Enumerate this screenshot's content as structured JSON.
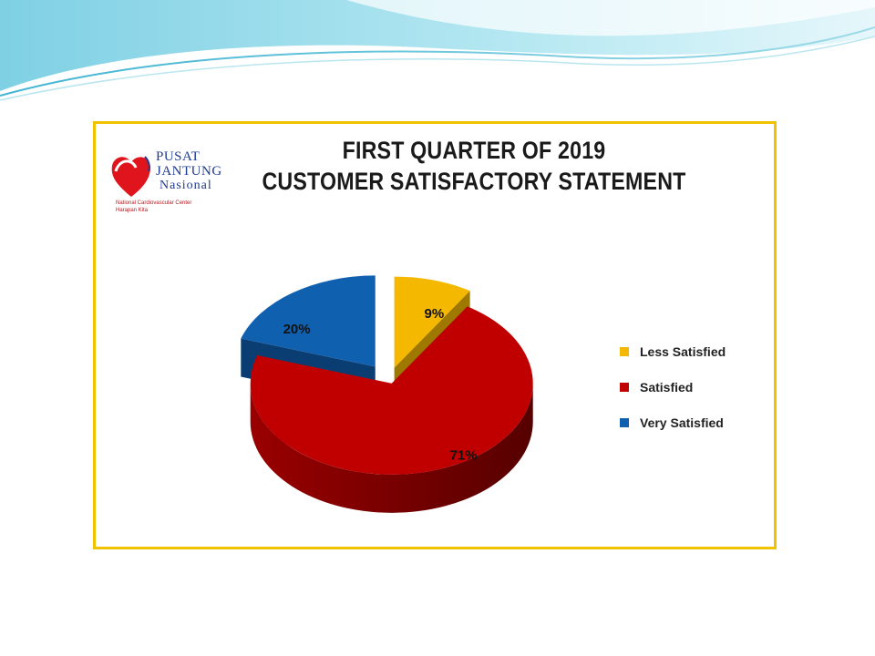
{
  "logo": {
    "line1": "PUSAT",
    "line2": "JANTUNG",
    "line3": "Nasional",
    "line4": "National Cardiovascular Center",
    "line5": "Harapan Kita"
  },
  "chart_data": {
    "type": "pie",
    "title_lines": [
      "FIRST QUARTER OF 2019",
      "CUSTOMER SATISFACTORY STATEMENT"
    ],
    "slices": [
      {
        "name": "Less Satisfied",
        "value": 9,
        "label": "9%",
        "color": "#f5b800"
      },
      {
        "name": "Satisfied",
        "value": 71,
        "label": "71%",
        "color": "#c00000"
      },
      {
        "name": "Very Satisfied",
        "value": 20,
        "label": "20%",
        "color": "#1060b0"
      }
    ],
    "exploded": true,
    "three_d": true,
    "legend_position": "right"
  },
  "colors": {
    "frame_border": "#f2c200",
    "wave_light": "#a8e4ef",
    "wave_mid": "#5fc4dc"
  }
}
